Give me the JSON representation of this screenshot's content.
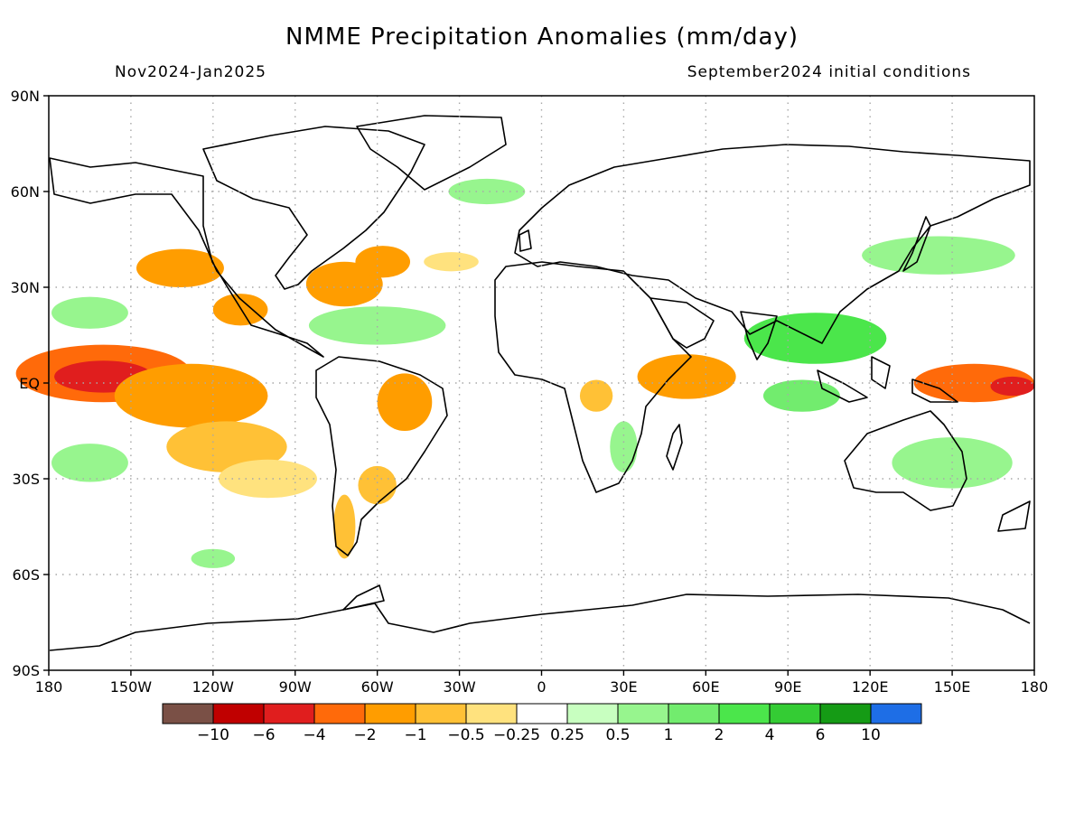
{
  "title": "NMME Precipitation Anomalies (mm/day)",
  "period": "Nov2024-Jan2025",
  "init": "September2024 initial conditions",
  "map": {
    "lon_labels": [
      "180",
      "150W",
      "120W",
      "90W",
      "60W",
      "30W",
      "0",
      "30E",
      "60E",
      "90E",
      "120E",
      "150E",
      "180"
    ],
    "lat_labels": [
      "90N",
      "60N",
      "30N",
      "EQ",
      "30S",
      "60S",
      "90S"
    ],
    "lon_range": [
      -180,
      180
    ],
    "lat_range": [
      -90,
      90
    ],
    "gridlines": "dotted",
    "colors": {
      "coast": "#000000",
      "grid": "#a8a8a8"
    }
  },
  "colorbar": {
    "colors": [
      "#7a5046",
      "#c00000",
      "#e01e1e",
      "#ff6a0a",
      "#ff9d00",
      "#ffc136",
      "#ffe27e",
      "#ffffff",
      "#c8ffc0",
      "#97f58e",
      "#72ec6e",
      "#4be64b",
      "#34cc34",
      "#159b15",
      "#1e6ee6"
    ],
    "labels": [
      "-10",
      "-6",
      "-4",
      "-2",
      "-1",
      "-0.5",
      "-0.25",
      "0.25",
      "0.5",
      "1",
      "2",
      "4",
      "6",
      "10"
    ]
  },
  "anomalies": [
    {
      "lon": -160,
      "lat": 3,
      "rx": 32,
      "ry": 9,
      "level": 3
    },
    {
      "lon": -160,
      "lat": 2,
      "rx": 18,
      "ry": 5,
      "level": 2
    },
    {
      "lon": -128,
      "lat": -4,
      "rx": 28,
      "ry": 10,
      "level": 4
    },
    {
      "lon": -115,
      "lat": -20,
      "rx": 22,
      "ry": 8,
      "level": 5
    },
    {
      "lon": -100,
      "lat": -30,
      "rx": 18,
      "ry": 6,
      "level": 6
    },
    {
      "lon": -132,
      "lat": 36,
      "rx": 16,
      "ry": 6,
      "level": 4
    },
    {
      "lon": -110,
      "lat": 23,
      "rx": 10,
      "ry": 5,
      "level": 4
    },
    {
      "lon": -72,
      "lat": 31,
      "rx": 14,
      "ry": 7,
      "level": 4
    },
    {
      "lon": -58,
      "lat": 38,
      "rx": 10,
      "ry": 5,
      "level": 4
    },
    {
      "lon": -50,
      "lat": -6,
      "rx": 10,
      "ry": 9,
      "level": 4
    },
    {
      "lon": -60,
      "lat": -32,
      "rx": 7,
      "ry": 6,
      "level": 5
    },
    {
      "lon": -72,
      "lat": -45,
      "rx": 4,
      "ry": 10,
      "level": 5
    },
    {
      "lon": -33,
      "lat": 38,
      "rx": 10,
      "ry": 3,
      "level": 6
    },
    {
      "lon": 53,
      "lat": 2,
      "rx": 18,
      "ry": 7,
      "level": 4
    },
    {
      "lon": 20,
      "lat": -4,
      "rx": 6,
      "ry": 5,
      "level": 5
    },
    {
      "lon": 158,
      "lat": 0,
      "rx": 22,
      "ry": 6,
      "level": 3
    },
    {
      "lon": 172,
      "lat": -1,
      "rx": 8,
      "ry": 3,
      "level": 2
    },
    {
      "lon": 100,
      "lat": 14,
      "rx": 26,
      "ry": 8,
      "level": 11
    },
    {
      "lon": 95,
      "lat": -4,
      "rx": 14,
      "ry": 5,
      "level": 10
    },
    {
      "lon": 150,
      "lat": -25,
      "rx": 22,
      "ry": 8,
      "level": 9
    },
    {
      "lon": 145,
      "lat": 40,
      "rx": 28,
      "ry": 6,
      "level": 9
    },
    {
      "lon": -60,
      "lat": 18,
      "rx": 25,
      "ry": 6,
      "level": 9
    },
    {
      "lon": -165,
      "lat": -25,
      "rx": 14,
      "ry": 6,
      "level": 9
    },
    {
      "lon": -165,
      "lat": 22,
      "rx": 14,
      "ry": 5,
      "level": 9
    },
    {
      "lon": -20,
      "lat": 60,
      "rx": 14,
      "ry": 4,
      "level": 9
    },
    {
      "lon": 30,
      "lat": -20,
      "rx": 5,
      "ry": 8,
      "level": 9
    },
    {
      "lon": -120,
      "lat": -55,
      "rx": 8,
      "ry": 3,
      "level": 9
    }
  ]
}
